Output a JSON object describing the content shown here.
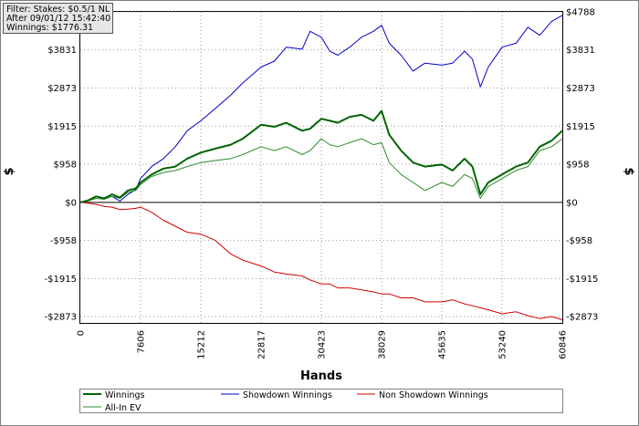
{
  "info_box": {
    "filter": "Filter: Stakes: $0.5/1 NL",
    "after": "After 09/01/12 15:42:40",
    "winnings": "Winnings: $1776.31"
  },
  "chart_data": {
    "type": "line",
    "xlabel": "Hands",
    "ylabel": "$",
    "xlim": [
      0,
      60846
    ],
    "ylim": [
      -3030,
      4788
    ],
    "x_ticks": [
      0,
      7606,
      15212,
      22817,
      30423,
      38029,
      45635,
      53240,
      60846
    ],
    "x_tick_labels": [
      "0",
      "7606",
      "15212",
      "22817",
      "30423",
      "38029",
      "45635",
      "53240",
      "60846"
    ],
    "y_ticks": [
      4788,
      3831,
      2873,
      1915,
      958,
      0,
      -958,
      -1915,
      -2873
    ],
    "y_tick_labels": [
      "$4788",
      "$3831",
      "$2873",
      "$1915",
      "$958",
      "$0",
      "-$958",
      "-$1915",
      "-$2873"
    ],
    "legend_position": "bottom",
    "x": [
      0,
      1000,
      2000,
      3000,
      4000,
      5000,
      6000,
      7000,
      7606,
      9000,
      10500,
      12000,
      13500,
      15212,
      17000,
      19000,
      20500,
      22817,
      24500,
      26000,
      28000,
      29000,
      30423,
      31500,
      32500,
      34000,
      35500,
      37000,
      38029,
      39000,
      40500,
      42000,
      43500,
      45635,
      47000,
      48500,
      49500,
      50500,
      51500,
      53240,
      55000,
      56500,
      58000,
      59500,
      60846
    ],
    "series": [
      {
        "name": "Winnings",
        "color": "#006400",
        "width": 2,
        "values": [
          0,
          50,
          150,
          100,
          200,
          120,
          300,
          350,
          500,
          700,
          850,
          900,
          1100,
          1250,
          1350,
          1450,
          1600,
          1950,
          1900,
          2000,
          1800,
          1850,
          2100,
          2050,
          2000,
          2150,
          2200,
          2050,
          2300,
          1700,
          1300,
          1000,
          900,
          950,
          800,
          1100,
          900,
          200,
          500,
          700,
          900,
          1000,
          1400,
          1550,
          1800
        ]
      },
      {
        "name": "Showdown Winnings",
        "color": "#0000c8",
        "width": 1,
        "values": [
          0,
          60,
          150,
          80,
          150,
          30,
          200,
          320,
          600,
          900,
          1100,
          1400,
          1800,
          2050,
          2350,
          2700,
          3000,
          3400,
          3550,
          3900,
          3850,
          4300,
          4150,
          3800,
          3700,
          3900,
          4150,
          4300,
          4450,
          4000,
          3700,
          3300,
          3500,
          3450,
          3500,
          3800,
          3600,
          2900,
          3400,
          3900,
          4000,
          4400,
          4200,
          4550,
          4700
        ]
      },
      {
        "name": "Non Showdown Winnings",
        "color": "#d20000",
        "width": 1,
        "values": [
          0,
          -20,
          -50,
          -100,
          -120,
          -180,
          -170,
          -150,
          -120,
          -250,
          -450,
          -600,
          -750,
          -800,
          -950,
          -1300,
          -1450,
          -1600,
          -1750,
          -1800,
          -1850,
          -1950,
          -2050,
          -2050,
          -2150,
          -2150,
          -2200,
          -2250,
          -2300,
          -2300,
          -2400,
          -2400,
          -2500,
          -2500,
          -2450,
          -2550,
          -2600,
          -2650,
          -2700,
          -2800,
          -2750,
          -2850,
          -2920,
          -2870,
          -2950
        ]
      },
      {
        "name": "All-In EV",
        "color": "#2e8b2e",
        "width": 1,
        "values": [
          0,
          40,
          100,
          80,
          150,
          100,
          250,
          300,
          450,
          650,
          750,
          800,
          900,
          1000,
          1050,
          1100,
          1200,
          1400,
          1300,
          1400,
          1200,
          1300,
          1600,
          1450,
          1400,
          1500,
          1600,
          1450,
          1500,
          1000,
          700,
          500,
          300,
          500,
          400,
          700,
          600,
          100,
          400,
          600,
          800,
          900,
          1300,
          1400,
          1600
        ]
      }
    ]
  }
}
